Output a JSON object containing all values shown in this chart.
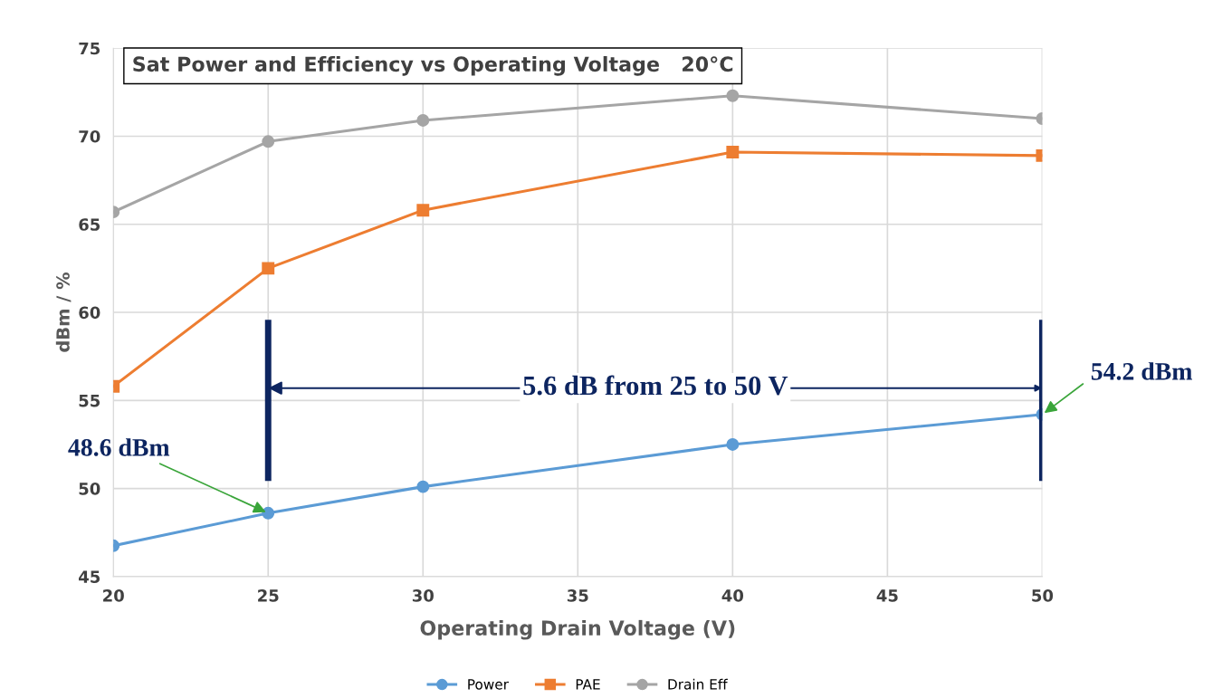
{
  "chart_data": {
    "type": "line",
    "title": "Sat Power and Efficiency vs Operating Voltage   20°C",
    "xlabel": "Operating Drain Voltage (V)",
    "ylabel": "dBm / %",
    "x": [
      20,
      25,
      30,
      40,
      50
    ],
    "series": [
      {
        "name": "Power",
        "color": "#5b9bd5",
        "marker": "circle",
        "values": [
          46.75,
          48.6,
          50.1,
          52.5,
          54.2
        ]
      },
      {
        "name": "PAE",
        "color": "#ed7d31",
        "marker": "square",
        "values": [
          55.8,
          62.5,
          65.8,
          69.1,
          68.9
        ]
      },
      {
        "name": "Drain Eff",
        "color": "#a5a5a5",
        "marker": "circle",
        "values": [
          65.7,
          69.7,
          70.9,
          72.3,
          71.0
        ]
      }
    ],
    "xlim": [
      20,
      50
    ],
    "xticks": [
      20,
      25,
      30,
      35,
      40,
      45,
      50
    ],
    "ylim": [
      45,
      75
    ],
    "yticks": [
      45,
      50,
      55,
      60,
      65,
      70,
      75
    ],
    "grid": true,
    "legend": "bottom",
    "line_style": "solid",
    "annotations": [
      {
        "text": "48.6 dBm",
        "x": 25,
        "y": 48.6
      },
      {
        "text": "54.2 dBm",
        "x": 50,
        "y": 54.2
      },
      "5.6 dB from 25 to 50 V"
    ]
  }
}
